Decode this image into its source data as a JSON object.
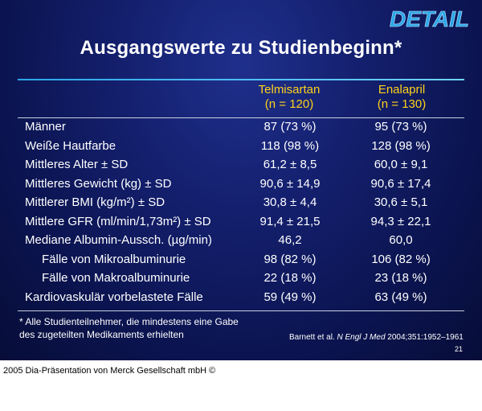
{
  "logo": {
    "text": "DETAIL",
    "color": "#2aa6e8"
  },
  "title": "Ausgangswerte zu Studienbeginn*",
  "columns": {
    "telmisartan": {
      "name": "Telmisartan",
      "n": "(n = 120)"
    },
    "enalapril": {
      "name": "Enalapril",
      "n": "(n = 130)"
    }
  },
  "rows": [
    {
      "label": "Männer",
      "telmisartan": "87 (73 %)",
      "enalapril": "95 (73 %)"
    },
    {
      "label": "Weiße Hautfarbe",
      "telmisartan": "118 (98 %)",
      "enalapril": "128 (98 %)"
    },
    {
      "label": "Mittleres Alter ± SD",
      "telmisartan": "61,2 ± 8,5",
      "enalapril": "60,0 ± 9,1"
    },
    {
      "label": "Mittleres Gewicht (kg) ± SD",
      "telmisartan": "90,6 ± 14,9",
      "enalapril": "90,6 ± 17,4"
    },
    {
      "label": "Mittlerer BMI (kg/m²) ± SD",
      "telmisartan": "30,8 ± 4,4",
      "enalapril": "30,6 ± 5,1"
    },
    {
      "label": "Mittlere GFR (ml/min/1,73m²) ± SD",
      "telmisartan": "91,4 ± 21,5",
      "enalapril": "94,3 ± 22,1"
    },
    {
      "label": "Mediane Albumin-Aussch. (µg/min)",
      "telmisartan": "46,2",
      "enalapril": "60,0"
    },
    {
      "label": "Fälle von Mikroalbuminurie",
      "telmisartan": "98 (82 %)",
      "enalapril": "106 (82 %)",
      "indent": true
    },
    {
      "label": "Fälle von Makroalbuminurie",
      "telmisartan": "22 (18 %)",
      "enalapril": "23 (18 %)",
      "indent": true
    },
    {
      "label": "Kardiovaskulär vorbelastete Fälle",
      "telmisartan": "59 (49 %)",
      "enalapril": "63 (49 %)"
    }
  ],
  "footnote": {
    "line1": "* Alle Studienteilnehmer, die mindestens eine Gabe",
    "line2": "des zugeteilten Medikaments erhielten"
  },
  "citation": {
    "authors": "Barnett et al.",
    "journal": "N Engl J Med",
    "ref": "2004;351:1952–1961"
  },
  "page_number": "21",
  "copyright": "2005 Dia-Präsentation von Merck Gesellschaft mbH ©",
  "colors": {
    "header_text": "#ffd21a",
    "rule": "#2aa6e8",
    "background": "#14206e"
  }
}
